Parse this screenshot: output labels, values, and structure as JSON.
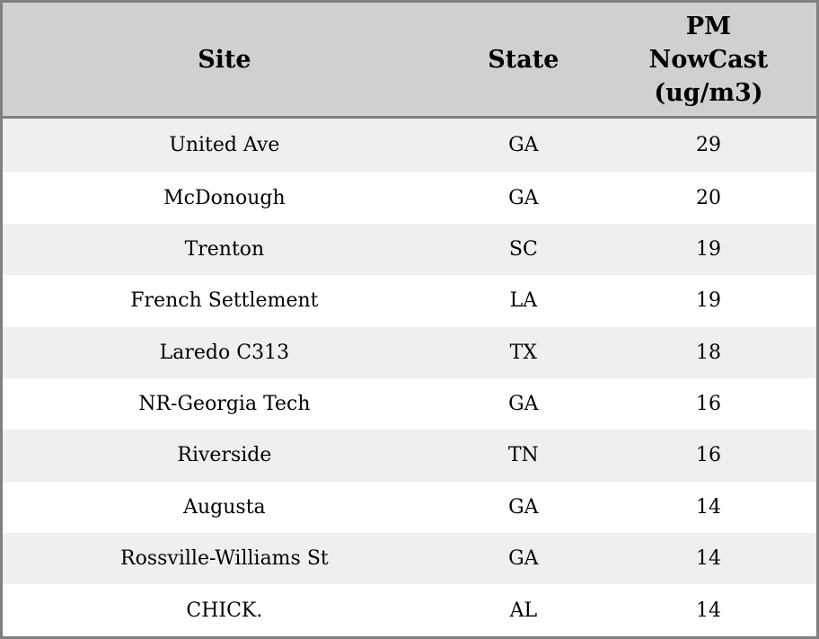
{
  "chart_data": {
    "type": "table",
    "columns": [
      "Site",
      "State",
      "PM NowCast (ug/m3)"
    ],
    "column_header_lines": [
      [
        "Site"
      ],
      [
        "State"
      ],
      [
        "PM",
        "NowCast",
        "(ug/m3)"
      ]
    ],
    "rows": [
      [
        "United Ave",
        "GA",
        "29"
      ],
      [
        "McDonough",
        "GA",
        "20"
      ],
      [
        "Trenton",
        "SC",
        "19"
      ],
      [
        "French Settlement",
        "LA",
        "19"
      ],
      [
        "Laredo C313",
        "TX",
        "18"
      ],
      [
        "NR-Georgia Tech",
        "GA",
        "16"
      ],
      [
        "Riverside",
        "TN",
        "16"
      ],
      [
        "Augusta",
        "GA",
        "14"
      ],
      [
        "Rossville-Williams St",
        "GA",
        "14"
      ],
      [
        "CHICK.",
        "AL",
        "14"
      ]
    ]
  },
  "colors": {
    "header_bg": "#d0d0d0",
    "row_alt_bg": "#efefef",
    "row_bg": "#ffffff",
    "border": "#808080",
    "text": "#000000"
  }
}
